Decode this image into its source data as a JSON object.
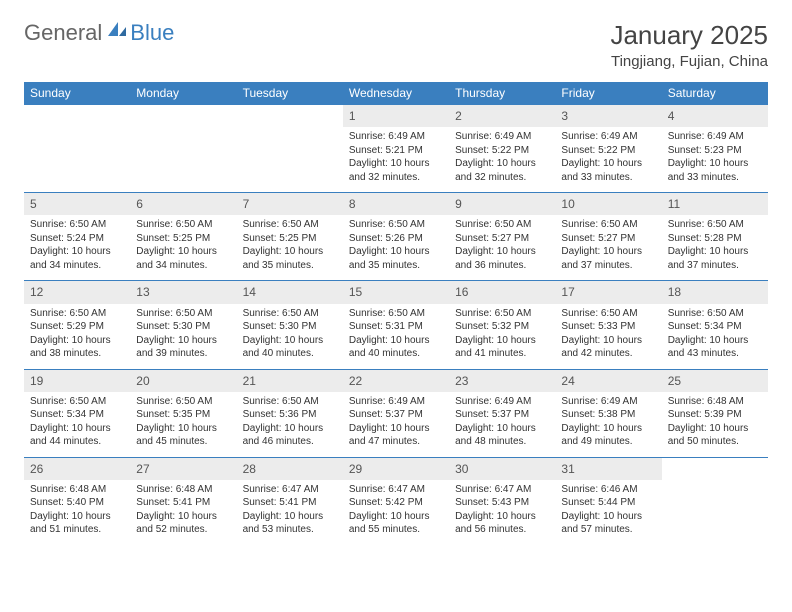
{
  "logo": {
    "text1": "General",
    "text2": "Blue"
  },
  "title": "January 2025",
  "location": "Tingjiang, Fujian, China",
  "colors": {
    "header_bg": "#3a7fbf",
    "header_fg": "#ffffff",
    "daynum_bg": "#ececec",
    "border": "#3a7fbf",
    "text": "#333333",
    "page_bg": "#ffffff"
  },
  "typography": {
    "title_fontsize": 26,
    "location_fontsize": 15,
    "weekday_fontsize": 12,
    "daynum_fontsize": 12,
    "body_fontsize": 10
  },
  "weekdays": [
    "Sunday",
    "Monday",
    "Tuesday",
    "Wednesday",
    "Thursday",
    "Friday",
    "Saturday"
  ],
  "weeks": [
    [
      {
        "n": "",
        "sr": "",
        "ss": "",
        "dl": ""
      },
      {
        "n": "",
        "sr": "",
        "ss": "",
        "dl": ""
      },
      {
        "n": "",
        "sr": "",
        "ss": "",
        "dl": ""
      },
      {
        "n": "1",
        "sr": "Sunrise: 6:49 AM",
        "ss": "Sunset: 5:21 PM",
        "dl": "Daylight: 10 hours and 32 minutes."
      },
      {
        "n": "2",
        "sr": "Sunrise: 6:49 AM",
        "ss": "Sunset: 5:22 PM",
        "dl": "Daylight: 10 hours and 32 minutes."
      },
      {
        "n": "3",
        "sr": "Sunrise: 6:49 AM",
        "ss": "Sunset: 5:22 PM",
        "dl": "Daylight: 10 hours and 33 minutes."
      },
      {
        "n": "4",
        "sr": "Sunrise: 6:49 AM",
        "ss": "Sunset: 5:23 PM",
        "dl": "Daylight: 10 hours and 33 minutes."
      }
    ],
    [
      {
        "n": "5",
        "sr": "Sunrise: 6:50 AM",
        "ss": "Sunset: 5:24 PM",
        "dl": "Daylight: 10 hours and 34 minutes."
      },
      {
        "n": "6",
        "sr": "Sunrise: 6:50 AM",
        "ss": "Sunset: 5:25 PM",
        "dl": "Daylight: 10 hours and 34 minutes."
      },
      {
        "n": "7",
        "sr": "Sunrise: 6:50 AM",
        "ss": "Sunset: 5:25 PM",
        "dl": "Daylight: 10 hours and 35 minutes."
      },
      {
        "n": "8",
        "sr": "Sunrise: 6:50 AM",
        "ss": "Sunset: 5:26 PM",
        "dl": "Daylight: 10 hours and 35 minutes."
      },
      {
        "n": "9",
        "sr": "Sunrise: 6:50 AM",
        "ss": "Sunset: 5:27 PM",
        "dl": "Daylight: 10 hours and 36 minutes."
      },
      {
        "n": "10",
        "sr": "Sunrise: 6:50 AM",
        "ss": "Sunset: 5:27 PM",
        "dl": "Daylight: 10 hours and 37 minutes."
      },
      {
        "n": "11",
        "sr": "Sunrise: 6:50 AM",
        "ss": "Sunset: 5:28 PM",
        "dl": "Daylight: 10 hours and 37 minutes."
      }
    ],
    [
      {
        "n": "12",
        "sr": "Sunrise: 6:50 AM",
        "ss": "Sunset: 5:29 PM",
        "dl": "Daylight: 10 hours and 38 minutes."
      },
      {
        "n": "13",
        "sr": "Sunrise: 6:50 AM",
        "ss": "Sunset: 5:30 PM",
        "dl": "Daylight: 10 hours and 39 minutes."
      },
      {
        "n": "14",
        "sr": "Sunrise: 6:50 AM",
        "ss": "Sunset: 5:30 PM",
        "dl": "Daylight: 10 hours and 40 minutes."
      },
      {
        "n": "15",
        "sr": "Sunrise: 6:50 AM",
        "ss": "Sunset: 5:31 PM",
        "dl": "Daylight: 10 hours and 40 minutes."
      },
      {
        "n": "16",
        "sr": "Sunrise: 6:50 AM",
        "ss": "Sunset: 5:32 PM",
        "dl": "Daylight: 10 hours and 41 minutes."
      },
      {
        "n": "17",
        "sr": "Sunrise: 6:50 AM",
        "ss": "Sunset: 5:33 PM",
        "dl": "Daylight: 10 hours and 42 minutes."
      },
      {
        "n": "18",
        "sr": "Sunrise: 6:50 AM",
        "ss": "Sunset: 5:34 PM",
        "dl": "Daylight: 10 hours and 43 minutes."
      }
    ],
    [
      {
        "n": "19",
        "sr": "Sunrise: 6:50 AM",
        "ss": "Sunset: 5:34 PM",
        "dl": "Daylight: 10 hours and 44 minutes."
      },
      {
        "n": "20",
        "sr": "Sunrise: 6:50 AM",
        "ss": "Sunset: 5:35 PM",
        "dl": "Daylight: 10 hours and 45 minutes."
      },
      {
        "n": "21",
        "sr": "Sunrise: 6:50 AM",
        "ss": "Sunset: 5:36 PM",
        "dl": "Daylight: 10 hours and 46 minutes."
      },
      {
        "n": "22",
        "sr": "Sunrise: 6:49 AM",
        "ss": "Sunset: 5:37 PM",
        "dl": "Daylight: 10 hours and 47 minutes."
      },
      {
        "n": "23",
        "sr": "Sunrise: 6:49 AM",
        "ss": "Sunset: 5:37 PM",
        "dl": "Daylight: 10 hours and 48 minutes."
      },
      {
        "n": "24",
        "sr": "Sunrise: 6:49 AM",
        "ss": "Sunset: 5:38 PM",
        "dl": "Daylight: 10 hours and 49 minutes."
      },
      {
        "n": "25",
        "sr": "Sunrise: 6:48 AM",
        "ss": "Sunset: 5:39 PM",
        "dl": "Daylight: 10 hours and 50 minutes."
      }
    ],
    [
      {
        "n": "26",
        "sr": "Sunrise: 6:48 AM",
        "ss": "Sunset: 5:40 PM",
        "dl": "Daylight: 10 hours and 51 minutes."
      },
      {
        "n": "27",
        "sr": "Sunrise: 6:48 AM",
        "ss": "Sunset: 5:41 PM",
        "dl": "Daylight: 10 hours and 52 minutes."
      },
      {
        "n": "28",
        "sr": "Sunrise: 6:47 AM",
        "ss": "Sunset: 5:41 PM",
        "dl": "Daylight: 10 hours and 53 minutes."
      },
      {
        "n": "29",
        "sr": "Sunrise: 6:47 AM",
        "ss": "Sunset: 5:42 PM",
        "dl": "Daylight: 10 hours and 55 minutes."
      },
      {
        "n": "30",
        "sr": "Sunrise: 6:47 AM",
        "ss": "Sunset: 5:43 PM",
        "dl": "Daylight: 10 hours and 56 minutes."
      },
      {
        "n": "31",
        "sr": "Sunrise: 6:46 AM",
        "ss": "Sunset: 5:44 PM",
        "dl": "Daylight: 10 hours and 57 minutes."
      },
      {
        "n": "",
        "sr": "",
        "ss": "",
        "dl": ""
      }
    ]
  ]
}
